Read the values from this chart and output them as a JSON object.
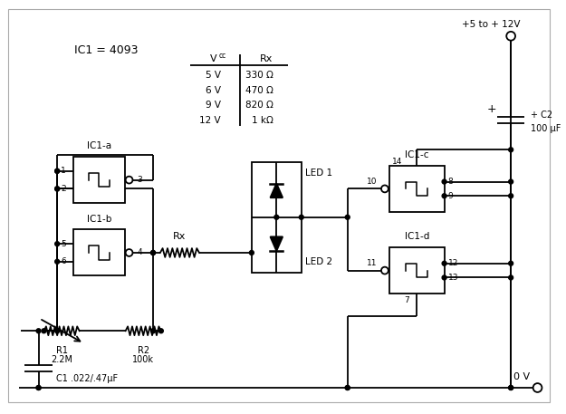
{
  "line_color": "#000000",
  "text_color": "#000000",
  "ic1_label": "IC1 = 4093",
  "vcc_rows": [
    [
      "5 V",
      "330 Ω"
    ],
    [
      "6 V",
      "470 Ω"
    ],
    [
      "9 V",
      "820 Ω"
    ],
    [
      "12 V",
      "1 kΩ"
    ]
  ],
  "supply_label": "+5 to + 12V",
  "ground_label": "0 V",
  "c2_label_1": "+ C2",
  "c2_label_2": "100 μF",
  "c1_label": "C1 .022/.47μF",
  "r1_label_1": "R1",
  "r1_label_2": "2.2M",
  "r2_label_1": "R2",
  "r2_label_2": "100k",
  "rx_label": "Rx",
  "led1_label": "LED 1",
  "led2_label": "LED 2",
  "ic1a_label": "IC1-a",
  "ic1b_label": "IC1-b",
  "ic1c_label": "IC1-c",
  "ic1d_label": "IC1-d"
}
